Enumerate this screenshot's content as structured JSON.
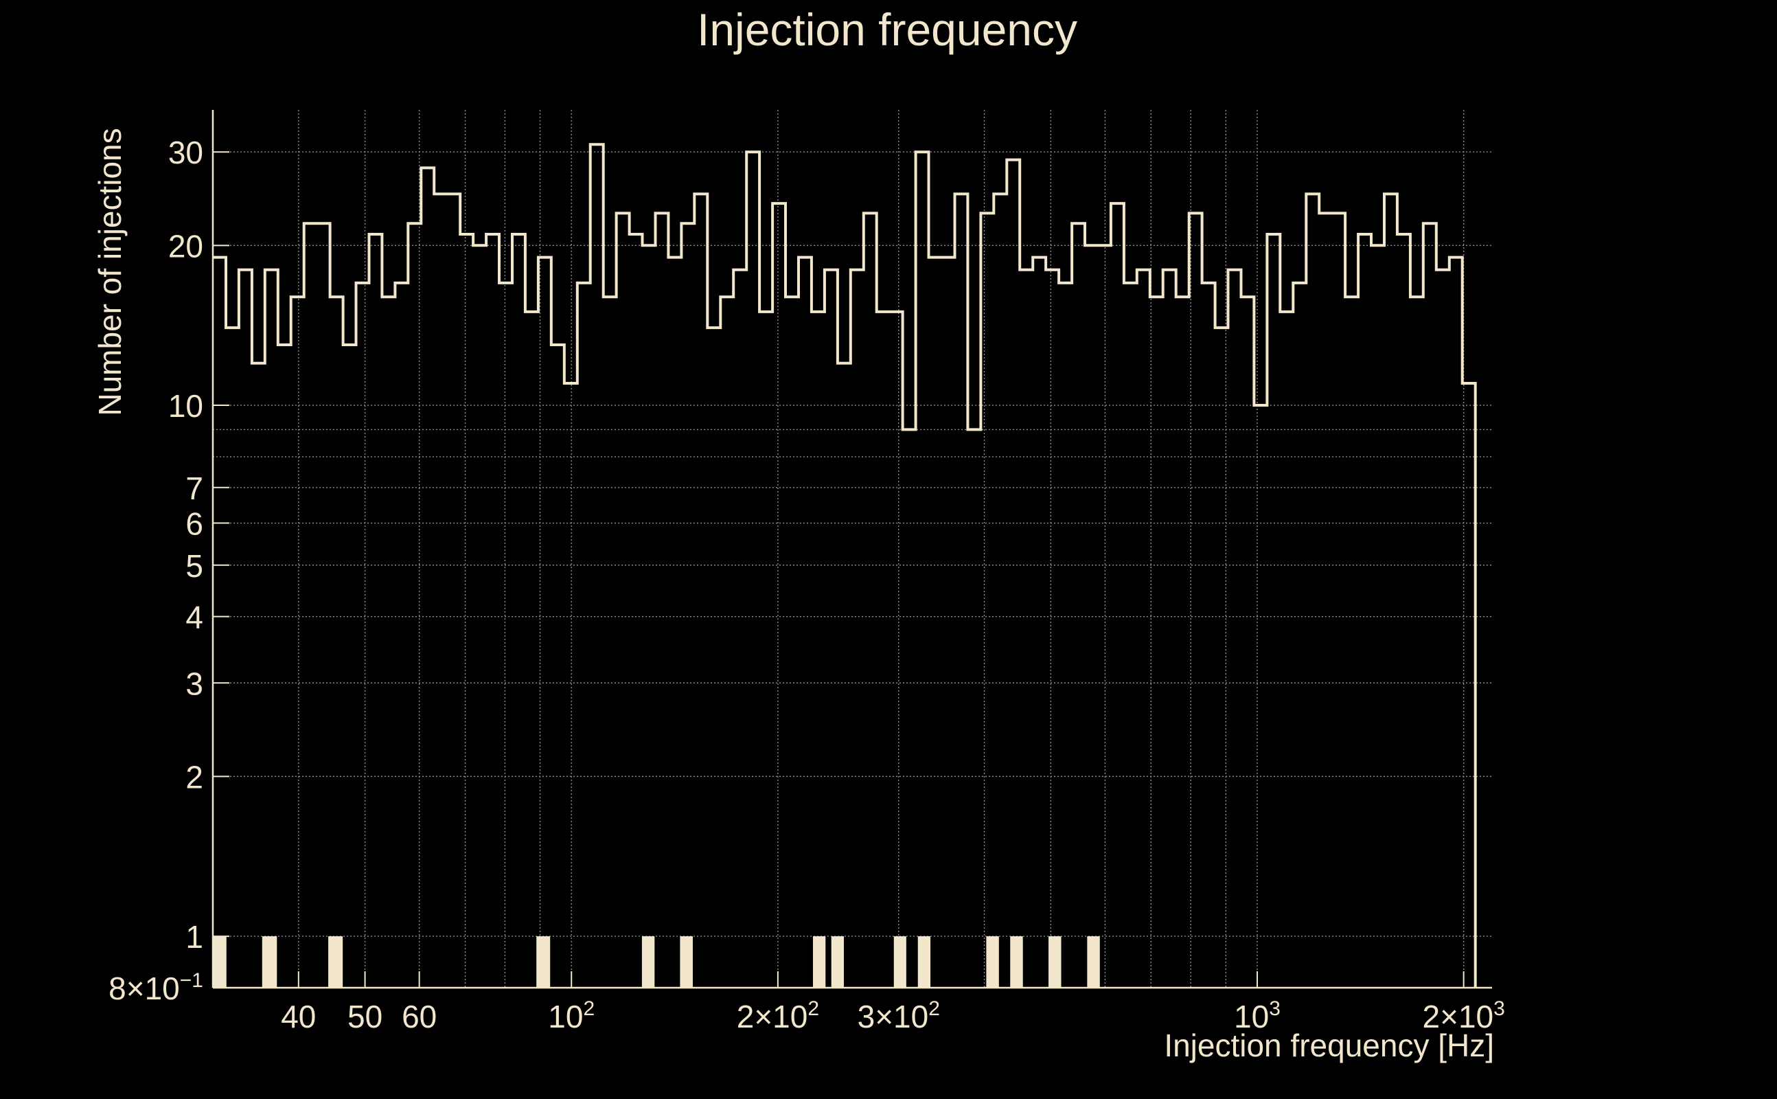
{
  "chart_data": {
    "type": "histogram",
    "title": "Injection frequency",
    "xlabel": "Injection frequency [Hz]",
    "ylabel": "Number of injections",
    "xscale": "log",
    "yscale": "log",
    "xlim": [
      30,
      2200
    ],
    "ylim": [
      0.8,
      36
    ],
    "grid": true,
    "legend": "none",
    "line_color": "#f2e6cc",
    "background_color": "#000000",
    "grid_color": "#8c8c8c",
    "x_ticks": [
      {
        "value": 40,
        "label": "40"
      },
      {
        "value": 50,
        "label": "50"
      },
      {
        "value": 60,
        "label": "60"
      },
      {
        "value": 100,
        "label": "10",
        "sup": "2"
      },
      {
        "value": 200,
        "label": "2×10",
        "sup": "2"
      },
      {
        "value": 300,
        "label": "3×10",
        "sup": "2"
      },
      {
        "value": 1000,
        "label": "10",
        "sup": "3"
      },
      {
        "value": 2000,
        "label": "2×10",
        "sup": "3"
      }
    ],
    "y_ticks": [
      {
        "value": 0.8,
        "label": "8×10",
        "sup": "−1"
      },
      {
        "value": 1,
        "label": "1"
      },
      {
        "value": 2,
        "label": "2"
      },
      {
        "value": 3,
        "label": "3"
      },
      {
        "value": 4,
        "label": "4"
      },
      {
        "value": 5,
        "label": "5"
      },
      {
        "value": 6,
        "label": "6"
      },
      {
        "value": 7,
        "label": "7"
      },
      {
        "value": 10,
        "label": "10"
      },
      {
        "value": 20,
        "label": "20"
      },
      {
        "value": 30,
        "label": "30"
      }
    ],
    "x_grid_minor": [
      70,
      80,
      90,
      400,
      500,
      600,
      700,
      800,
      900
    ],
    "y_grid_minor": [
      8,
      9
    ],
    "bin_range": [
      30,
      2080
    ],
    "bin_counts": [
      19,
      14,
      18,
      12,
      18,
      13,
      16,
      22,
      22,
      16,
      13,
      17,
      21,
      16,
      17,
      22,
      28,
      25,
      25,
      21,
      20,
      21,
      17,
      21,
      15,
      19,
      13,
      11,
      17,
      31,
      16,
      23,
      21,
      20,
      23,
      19,
      22,
      25,
      14,
      16,
      18,
      30,
      15,
      24,
      16,
      19,
      15,
      18,
      12,
      18,
      23,
      15,
      15,
      9,
      30,
      19,
      19,
      25,
      9,
      23,
      25,
      29,
      18,
      19,
      18,
      17,
      22,
      20,
      20,
      24,
      17,
      18,
      16,
      18,
      16,
      23,
      17,
      14,
      18,
      16,
      10,
      21,
      15,
      17,
      25,
      23,
      23,
      16,
      21,
      20,
      25,
      21,
      16,
      22,
      18,
      19,
      11
    ],
    "unit_count_bins": [
      [
        30.0,
        31.4
      ],
      [
        35.4,
        37.2
      ],
      [
        44.2,
        46.4
      ],
      [
        88.9,
        93.1
      ],
      [
        126.7,
        132.2
      ],
      [
        144.0,
        150.3
      ],
      [
        225.0,
        234.7
      ],
      [
        239.3,
        249.6
      ],
      [
        295.2,
        307.8
      ],
      [
        320.0,
        333.8
      ],
      [
        402.6,
        420.1
      ],
      [
        436.3,
        455.3
      ],
      [
        496.2,
        517.8
      ],
      [
        565.0,
        589.5
      ]
    ]
  }
}
